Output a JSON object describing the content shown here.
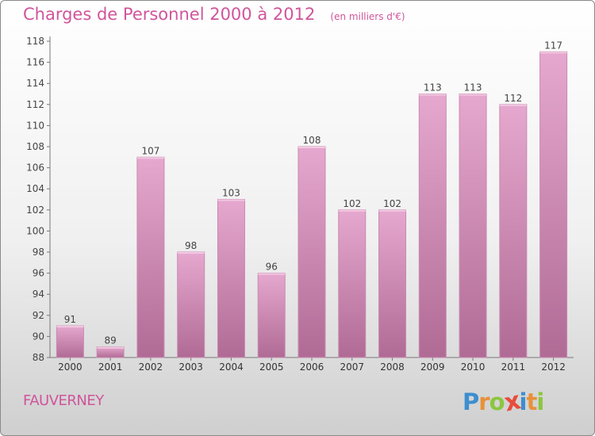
{
  "chart_data": {
    "type": "bar",
    "title": "Charges de Personnel 2000 à 2012",
    "subtitle": "(en milliers d'€)",
    "categories": [
      "2000",
      "2001",
      "2002",
      "2003",
      "2004",
      "2005",
      "2006",
      "2007",
      "2008",
      "2009",
      "2010",
      "2011",
      "2012"
    ],
    "values": [
      91,
      89,
      107,
      98,
      103,
      96,
      108,
      102,
      102,
      113,
      113,
      112,
      117
    ],
    "ylim": [
      88,
      118
    ],
    "yticks": [
      88,
      90,
      92,
      94,
      96,
      98,
      100,
      102,
      104,
      106,
      108,
      110,
      112,
      114,
      116,
      118
    ],
    "grid": false,
    "colors": {
      "bar_top": "#e6a8cf",
      "bar_bottom": "#b06b95",
      "text": "#d0559b"
    }
  },
  "footer": {
    "commune": "FAUVERNEY",
    "logo_letters": [
      {
        "ch": "P",
        "color": "#3d8ed0"
      },
      {
        "ch": "r",
        "color": "#e8913a"
      },
      {
        "ch": "o",
        "color": "#8cc63f"
      },
      {
        "ch": "x",
        "color": "#e84c3d"
      },
      {
        "ch": "i",
        "color": "#3d8ed0"
      },
      {
        "ch": "t",
        "color": "#e8913a"
      },
      {
        "ch": "i",
        "color": "#8cc63f"
      }
    ]
  }
}
